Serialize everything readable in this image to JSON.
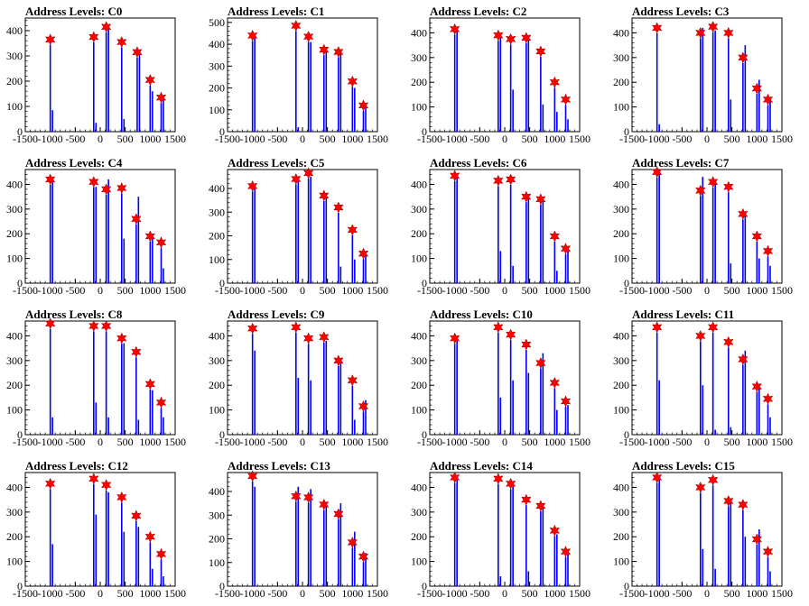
{
  "chart_data": [
    {
      "type": "bar",
      "title": "Address Levels: C0",
      "xticks": [
        "-1500",
        "-1000",
        "-500",
        "0",
        "500",
        "1000",
        "1500"
      ],
      "xlim": [
        -1500,
        1500
      ],
      "yticks": [
        "0",
        "100",
        "200",
        "300",
        "400"
      ],
      "ylim": [
        0,
        450
      ],
      "x": [
        -1000,
        -130,
        120,
        430,
        740,
        1000,
        1220
      ],
      "peaks": [
        365,
        375,
        415,
        355,
        315,
        205,
        135
      ],
      "spikes": [
        85,
        35,
        420,
        50,
        325,
        160,
        130
      ]
    },
    {
      "type": "bar",
      "title": "Address Levels: C1",
      "xticks": [
        "-1500",
        "-1000",
        "-500",
        "0",
        "500",
        "1000",
        "1500"
      ],
      "xlim": [
        -1500,
        1500
      ],
      "yticks": [
        "0",
        "100",
        "200",
        "300",
        "400",
        "500"
      ],
      "ylim": [
        0,
        520
      ],
      "x": [
        -1000,
        -130,
        120,
        430,
        720,
        1000,
        1220
      ],
      "peaks": [
        440,
        485,
        435,
        375,
        365,
        230,
        120
      ],
      "spikes": [
        430,
        20,
        410,
        370,
        360,
        200,
        110
      ]
    },
    {
      "type": "bar",
      "title": "Address Levels: C2",
      "xticks": [
        "-1500",
        "-1000",
        "-500",
        "0",
        "500",
        "1000",
        "1500"
      ],
      "xlim": [
        -1500,
        1500
      ],
      "yticks": [
        "0",
        "100",
        "200",
        "300",
        "400"
      ],
      "ylim": [
        0,
        460
      ],
      "x": [
        -1000,
        -130,
        120,
        430,
        720,
        1000,
        1220
      ],
      "peaks": [
        415,
        390,
        375,
        380,
        325,
        200,
        130
      ],
      "spikes": [
        410,
        380,
        170,
        370,
        110,
        80,
        50
      ]
    },
    {
      "type": "bar",
      "title": "Address Levels: C3",
      "xticks": [
        "-1500",
        "-1000",
        "-500",
        "0",
        "500",
        "1000",
        "1500"
      ],
      "xlim": [
        -1500,
        1500
      ],
      "yticks": [
        "0",
        "100",
        "200",
        "300",
        "400"
      ],
      "ylim": [
        0,
        460
      ],
      "x": [
        -1000,
        -130,
        120,
        430,
        720,
        1000,
        1220
      ],
      "peaks": [
        420,
        400,
        425,
        400,
        300,
        175,
        130
      ],
      "spikes": [
        30,
        420,
        410,
        130,
        350,
        210,
        140
      ]
    },
    {
      "type": "bar",
      "title": "Address Levels: C4",
      "xticks": [
        "-1500",
        "-1000",
        "-500",
        "0",
        "500",
        "1000",
        "1500"
      ],
      "xlim": [
        -1500,
        1500
      ],
      "yticks": [
        "0",
        "100",
        "200",
        "300",
        "400"
      ],
      "ylim": [
        0,
        460
      ],
      "x": [
        -1000,
        -130,
        120,
        430,
        720,
        1000,
        1220
      ],
      "peaks": [
        420,
        410,
        380,
        385,
        260,
        190,
        165
      ],
      "spikes": [
        415,
        390,
        420,
        180,
        350,
        200,
        60
      ]
    },
    {
      "type": "bar",
      "title": "Address Levels: C5",
      "xticks": [
        "-1500",
        "-1000",
        "-500",
        "0",
        "500",
        "1000",
        "1500"
      ],
      "xlim": [
        -1500,
        1500
      ],
      "yticks": [
        "0",
        "100",
        "200",
        "300",
        "400"
      ],
      "ylim": [
        0,
        480
      ],
      "x": [
        -1000,
        -130,
        120,
        430,
        720,
        1000,
        1220
      ],
      "peaks": [
        410,
        440,
        465,
        370,
        320,
        225,
        125
      ],
      "spikes": [
        400,
        430,
        450,
        360,
        70,
        100,
        120
      ]
    },
    {
      "type": "bar",
      "title": "Address Levels: C6",
      "xticks": [
        "-1500",
        "-1000",
        "-500",
        "0",
        "500",
        "1000",
        "1500"
      ],
      "xlim": [
        -1500,
        1500
      ],
      "yticks": [
        "0",
        "100",
        "200",
        "300",
        "400"
      ],
      "ylim": [
        0,
        460
      ],
      "x": [
        -1000,
        -130,
        120,
        430,
        720,
        1000,
        1220
      ],
      "peaks": [
        435,
        415,
        420,
        350,
        340,
        190,
        140
      ],
      "spikes": [
        430,
        130,
        70,
        340,
        330,
        50,
        130
      ]
    },
    {
      "type": "bar",
      "title": "Address Levels: C7",
      "xticks": [
        "-1500",
        "-1000",
        "-500",
        "0",
        "500",
        "1000",
        "1500"
      ],
      "xlim": [
        -1500,
        1500
      ],
      "yticks": [
        "0",
        "100",
        "200",
        "300",
        "400"
      ],
      "ylim": [
        0,
        460
      ],
      "x": [
        -1000,
        -130,
        120,
        430,
        720,
        1000,
        1220
      ],
      "peaks": [
        450,
        375,
        410,
        390,
        280,
        190,
        130
      ],
      "spikes": [
        440,
        430,
        410,
        80,
        290,
        100,
        70
      ]
    },
    {
      "type": "bar",
      "title": "Address Levels: C8",
      "xticks": [
        "-1500",
        "-1000",
        "-500",
        "0",
        "500",
        "1000",
        "1500"
      ],
      "xlim": [
        -1500,
        1500
      ],
      "yticks": [
        "0",
        "100",
        "200",
        "300",
        "400"
      ],
      "ylim": [
        0,
        460
      ],
      "x": [
        -1000,
        -130,
        120,
        430,
        720,
        1000,
        1220
      ],
      "peaks": [
        450,
        440,
        440,
        390,
        335,
        205,
        130
      ],
      "spikes": [
        70,
        130,
        70,
        370,
        60,
        180,
        70
      ]
    },
    {
      "type": "bar",
      "title": "Address Levels: C9",
      "xticks": [
        "-1500",
        "-1000",
        "-500",
        "0",
        "500",
        "1000",
        "1500"
      ],
      "xlim": [
        -1500,
        1500
      ],
      "yticks": [
        "0",
        "100",
        "200",
        "300",
        "400"
      ],
      "ylim": [
        0,
        460
      ],
      "x": [
        -1000,
        -130,
        120,
        430,
        720,
        1000,
        1220
      ],
      "peaks": [
        430,
        435,
        390,
        395,
        300,
        220,
        115
      ],
      "spikes": [
        340,
        230,
        220,
        380,
        290,
        60,
        140
      ]
    },
    {
      "type": "bar",
      "title": "Address Levels: C10",
      "xticks": [
        "-1500",
        "-1000",
        "-500",
        "0",
        "500",
        "1000",
        "1500"
      ],
      "xlim": [
        -1500,
        1500
      ],
      "yticks": [
        "0",
        "100",
        "200",
        "300",
        "400"
      ],
      "ylim": [
        0,
        460
      ],
      "x": [
        -1000,
        -130,
        120,
        430,
        720,
        1000,
        1220
      ],
      "peaks": [
        390,
        435,
        405,
        365,
        290,
        210,
        135
      ],
      "spikes": [
        380,
        150,
        220,
        250,
        330,
        100,
        120
      ]
    },
    {
      "type": "bar",
      "title": "Address Levels: C11",
      "xticks": [
        "-1500",
        "-1000",
        "-500",
        "0",
        "500",
        "1000",
        "1500"
      ],
      "xlim": [
        -1500,
        1500
      ],
      "yticks": [
        "0",
        "100",
        "200",
        "300",
        "400"
      ],
      "ylim": [
        0,
        460
      ],
      "x": [
        -1000,
        -130,
        120,
        430,
        720,
        1000,
        1220
      ],
      "peaks": [
        435,
        400,
        435,
        375,
        305,
        195,
        145
      ],
      "spikes": [
        220,
        200,
        20,
        30,
        340,
        190,
        70
      ]
    },
    {
      "type": "bar",
      "title": "Address Levels: C12",
      "xticks": [
        "-1500",
        "-1000",
        "-500",
        "0",
        "500",
        "1000",
        "1500"
      ],
      "xlim": [
        -1500,
        1500
      ],
      "yticks": [
        "0",
        "100",
        "200",
        "300",
        "400"
      ],
      "ylim": [
        0,
        460
      ],
      "x": [
        -1000,
        -130,
        120,
        430,
        720,
        1000,
        1220
      ],
      "peaks": [
        415,
        435,
        410,
        360,
        285,
        200,
        130
      ],
      "spikes": [
        170,
        290,
        380,
        220,
        240,
        70,
        40
      ]
    },
    {
      "type": "bar",
      "title": "Address Levels: C13",
      "xticks": [
        "-1500",
        "-1000",
        "-500",
        "0",
        "500",
        "1000",
        "1500"
      ],
      "xlim": [
        -1500,
        1500
      ],
      "yticks": [
        "0",
        "100",
        "200",
        "300",
        "400"
      ],
      "ylim": [
        0,
        480
      ],
      "x": [
        -1000,
        -130,
        120,
        430,
        720,
        1000,
        1220
      ],
      "peaks": [
        465,
        380,
        375,
        345,
        305,
        185,
        125
      ],
      "spikes": [
        420,
        420,
        410,
        340,
        350,
        230,
        140
      ]
    },
    {
      "type": "bar",
      "title": "Address Levels: C14",
      "xticks": [
        "-1500",
        "-1000",
        "-500",
        "0",
        "500",
        "1000",
        "1500"
      ],
      "xlim": [
        -1500,
        1500
      ],
      "yticks": [
        "0",
        "100",
        "200",
        "300",
        "400"
      ],
      "ylim": [
        0,
        460
      ],
      "x": [
        -1000,
        -130,
        120,
        430,
        720,
        1000,
        1220
      ],
      "peaks": [
        440,
        435,
        415,
        350,
        325,
        225,
        140
      ],
      "spikes": [
        430,
        40,
        410,
        60,
        330,
        210,
        130
      ]
    },
    {
      "type": "bar",
      "title": "Address Levels: C15",
      "xticks": [
        "-1500",
        "-1000",
        "-500",
        "0",
        "500",
        "1000",
        "1500"
      ],
      "xlim": [
        -1500,
        1500
      ],
      "yticks": [
        "0",
        "100",
        "200",
        "300",
        "400"
      ],
      "ylim": [
        0,
        460
      ],
      "x": [
        -1000,
        -130,
        120,
        430,
        720,
        1000,
        1220
      ],
      "peaks": [
        440,
        400,
        430,
        345,
        330,
        190,
        140
      ],
      "spikes": [
        430,
        150,
        70,
        350,
        200,
        230,
        60
      ]
    }
  ]
}
